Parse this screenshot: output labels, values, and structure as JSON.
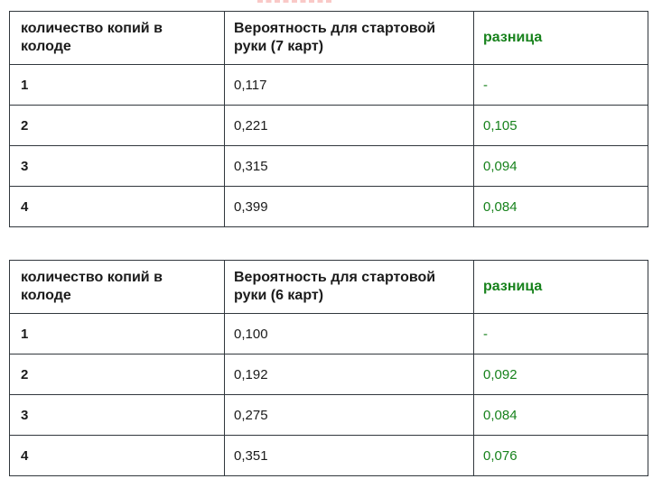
{
  "page": {
    "background": "#ffffff"
  },
  "colors": {
    "table_border": "#31373d",
    "text": "#1b1b1b",
    "accent_green": "#17821c",
    "dash_pink": "#f9c9c7"
  },
  "decor": {
    "truncated_link_underline": "pink dashed underline fragment cut off at top of viewport"
  },
  "chart_data": [
    {
      "type": "table",
      "title": "Вероятность для стартовой руки (7 карт)",
      "columns": [
        "количество копий в колоде",
        "Вероятность для стартовой руки (7 карт)",
        "разница"
      ],
      "rows": [
        [
          "1",
          "0,117",
          "-"
        ],
        [
          "2",
          "0,221",
          "0,105"
        ],
        [
          "3",
          "0,315",
          "0,094"
        ],
        [
          "4",
          "0,399",
          "0,084"
        ]
      ],
      "numeric": {
        "copies_in_deck": [
          1,
          2,
          3,
          4
        ],
        "probability_7_cards": [
          0.117,
          0.221,
          0.315,
          0.399
        ],
        "difference": [
          null,
          0.105,
          0.094,
          0.084
        ]
      },
      "layout": {
        "header_text_color": "#1b1b1b",
        "difference_column_color": "#17821c",
        "grid": true
      }
    },
    {
      "type": "table",
      "title": "Вероятность для стартовой руки (6 карт)",
      "columns": [
        "количество копий в колоде",
        "Вероятность для стартовой руки (6 карт)",
        "разница"
      ],
      "rows": [
        [
          "1",
          "0,100",
          "-"
        ],
        [
          "2",
          "0,192",
          "0,092"
        ],
        [
          "3",
          "0,275",
          "0,084"
        ],
        [
          "4",
          "0,351",
          "0,076"
        ]
      ],
      "numeric": {
        "copies_in_deck": [
          1,
          2,
          3,
          4
        ],
        "probability_6_cards": [
          0.1,
          0.192,
          0.275,
          0.351
        ],
        "difference": [
          null,
          0.092,
          0.084,
          0.076
        ]
      },
      "layout": {
        "header_text_color": "#1b1b1b",
        "difference_column_color": "#17821c",
        "grid": true
      }
    }
  ]
}
